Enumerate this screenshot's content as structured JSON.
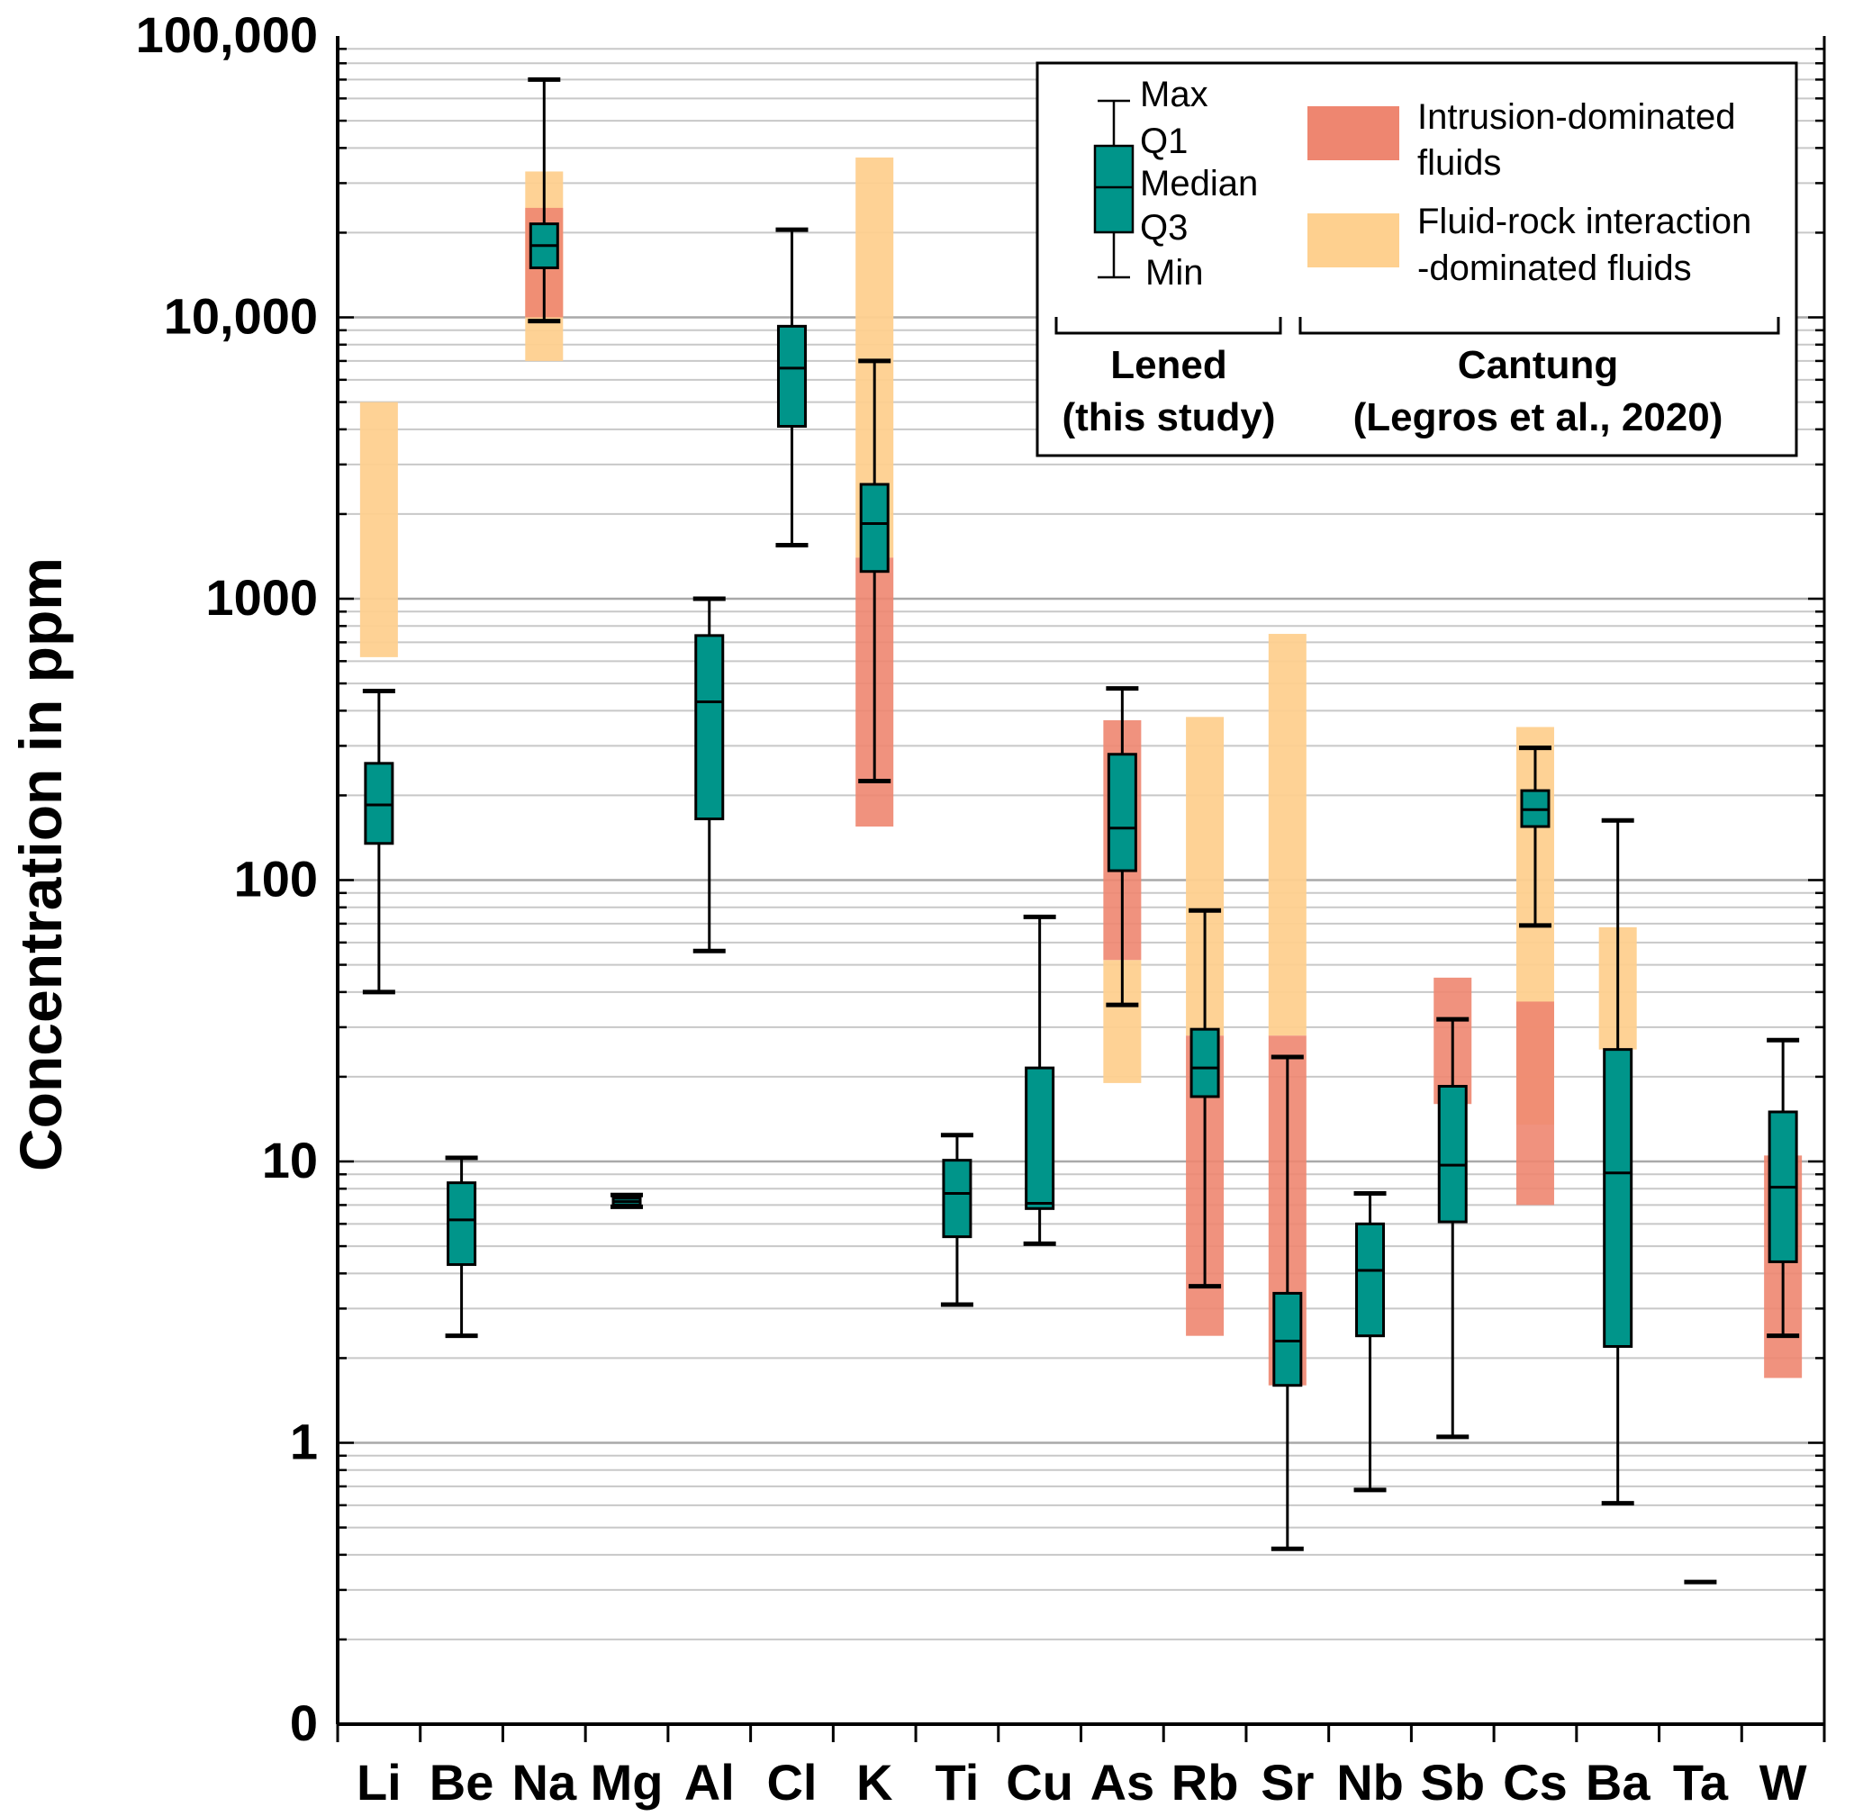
{
  "chart_data": {
    "type": "box",
    "title": "",
    "xlabel": "",
    "ylabel": "Concentration in ppm",
    "yscale": "log",
    "ylim": [
      0.1,
      100000
    ],
    "y_ticks": [
      {
        "value": 0.1,
        "label": "0"
      },
      {
        "value": 1,
        "label": "1"
      },
      {
        "value": 10,
        "label": "10"
      },
      {
        "value": 100,
        "label": "100"
      },
      {
        "value": 1000,
        "label": "1000"
      },
      {
        "value": 10000,
        "label": "10,000"
      },
      {
        "value": 100000,
        "label": "100,000"
      }
    ],
    "grid": true,
    "categories": [
      "Li",
      "Be",
      "Na",
      "Mg",
      "Al",
      "Cl",
      "K",
      "Ti",
      "Cu",
      "As",
      "Rb",
      "Sr",
      "Nb",
      "Sb",
      "Cs",
      "Ba",
      "Ta",
      "W"
    ],
    "lened_boxes": [
      {
        "element": "Li",
        "min": 40,
        "q1": 135,
        "median": 185,
        "q3": 260,
        "max": 470
      },
      {
        "element": "Be",
        "min": 2.4,
        "q1": 4.3,
        "median": 6.2,
        "q3": 8.4,
        "max": 10.3
      },
      {
        "element": "Na",
        "min": 9700,
        "q1": 15000,
        "median": 18000,
        "q3": 21500,
        "max": 70000
      },
      {
        "element": "Mg",
        "min": 6.9,
        "q1": 7.0,
        "median": 7.2,
        "q3": 7.4,
        "max": 7.6
      },
      {
        "element": "Al",
        "min": 56,
        "q1": 165,
        "median": 430,
        "q3": 740,
        "max": 1000
      },
      {
        "element": "Cl",
        "min": 1550,
        "q1": 4100,
        "median": 6600,
        "q3": 9300,
        "max": 20500
      },
      {
        "element": "K",
        "min": 225,
        "q1": 1250,
        "median": 1850,
        "q3": 2550,
        "max": 7000
      },
      {
        "element": "Ti",
        "min": 3.1,
        "q1": 5.4,
        "median": 7.7,
        "q3": 10.1,
        "max": 12.4
      },
      {
        "element": "Cu",
        "min": 5.1,
        "q1": 6.8,
        "median": 7.1,
        "q3": 21.5,
        "max": 74
      },
      {
        "element": "As",
        "min": 36,
        "q1": 108,
        "median": 153,
        "q3": 280,
        "max": 480
      },
      {
        "element": "Rb",
        "min": 3.6,
        "q1": 17,
        "median": 21.5,
        "q3": 29.5,
        "max": 78
      },
      {
        "element": "Sr",
        "min": 0.42,
        "q1": 1.6,
        "median": 2.3,
        "q3": 3.4,
        "max": 23.5
      },
      {
        "element": "Nb",
        "min": 0.68,
        "q1": 2.4,
        "median": 4.1,
        "q3": 6.0,
        "max": 7.7
      },
      {
        "element": "Sb",
        "min": 1.05,
        "q1": 6.1,
        "median": 9.7,
        "q3": 18.5,
        "max": 32
      },
      {
        "element": "Cs",
        "min": 69,
        "q1": 155,
        "median": 178,
        "q3": 208,
        "max": 295
      },
      {
        "element": "Ba",
        "min": 0.61,
        "q1": 2.2,
        "median": 9.1,
        "q3": 25,
        "max": 163
      },
      {
        "element": "Ta",
        "min": 0.32,
        "q1": 0.32,
        "median": 0.32,
        "q3": 0.32,
        "max": 0.32
      },
      {
        "element": "W",
        "min": 2.4,
        "q1": 4.4,
        "median": 8.1,
        "q3": 15,
        "max": 27
      }
    ],
    "cantung_ranges": [
      {
        "element": "Li",
        "type": "fluid-rock",
        "min": 620,
        "max": 5000
      },
      {
        "element": "Na",
        "type": "fluid-rock",
        "min": 7000,
        "max": 33000
      },
      {
        "element": "Na",
        "type": "intrusion",
        "min": 10000,
        "max": 24500
      },
      {
        "element": "K",
        "type": "fluid-rock",
        "min": 1400,
        "max": 37000
      },
      {
        "element": "K",
        "type": "intrusion",
        "min": 155,
        "max": 1400
      },
      {
        "element": "As",
        "type": "fluid-rock",
        "min": 19,
        "max": 52
      },
      {
        "element": "As",
        "type": "intrusion",
        "min": 52,
        "max": 370
      },
      {
        "element": "Rb",
        "type": "fluid-rock",
        "min": 28,
        "max": 380
      },
      {
        "element": "Rb",
        "type": "intrusion",
        "min": 2.4,
        "max": 28
      },
      {
        "element": "Sr",
        "type": "fluid-rock",
        "min": 28,
        "max": 750
      },
      {
        "element": "Sr",
        "type": "intrusion",
        "min": 1.6,
        "max": 28
      },
      {
        "element": "Sb",
        "type": "intrusion",
        "min": 16,
        "max": 45
      },
      {
        "element": "Cs",
        "type": "fluid-rock",
        "min": 13.5,
        "max": 350
      },
      {
        "element": "Cs",
        "type": "intrusion",
        "min": 7,
        "max": 37
      },
      {
        "element": "Ba",
        "type": "fluid-rock",
        "min": 25,
        "max": 68
      },
      {
        "element": "W",
        "type": "intrusion",
        "min": 1.7,
        "max": 10.5
      }
    ],
    "legend": {
      "box_labels": [
        "Max",
        "Q1",
        "Median",
        "Q3",
        "Min"
      ],
      "intrusion_label_1": "Intrusion-dominated",
      "intrusion_label_2": "fluids",
      "fluidrock_label_1": "Fluid-rock interaction",
      "fluidrock_label_2": "-dominated fluids",
      "lened_label_1": "Lened",
      "lened_label_2": "(this study)",
      "cantung_label_1": "Cantung",
      "cantung_label_2": "(Legros et al., 2020)",
      "placement": "top-right"
    },
    "colors": {
      "box_fill": "#00958a",
      "intrusion": "#ee8670",
      "fluid_rock": "#fed08f",
      "grid": "#c8c8c8"
    }
  }
}
